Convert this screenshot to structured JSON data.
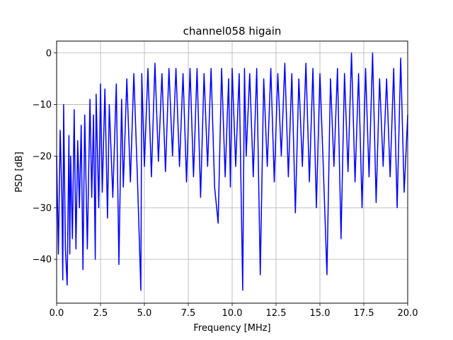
{
  "chart_data": {
    "type": "line",
    "title": "channel058 higain",
    "xlabel": "Frequency [MHz]",
    "ylabel": "PSD [dB]",
    "xlim": [
      0,
      20
    ],
    "ylim": [
      -48.5,
      2.3
    ],
    "grid": true,
    "xticks": [
      "0.0",
      "2.5",
      "5.0",
      "7.5",
      "10.0",
      "12.5",
      "15.0",
      "17.5",
      "20.0"
    ],
    "xtick_values": [
      0,
      2.5,
      5,
      7.5,
      10,
      12.5,
      15,
      17.5,
      20
    ],
    "yticks": [
      "0",
      "−10",
      "−20",
      "−30",
      "−40"
    ],
    "ytick_values": [
      0,
      -10,
      -20,
      -30,
      -40
    ],
    "series_color": "#0000ff",
    "series": [
      {
        "x": [
          0,
          0.1,
          0.2,
          0.3,
          0.35,
          0.4,
          0.5,
          0.6,
          0.7,
          0.75,
          0.8,
          0.9,
          1.0,
          1.1,
          1.2,
          1.3,
          1.4,
          1.5,
          1.6,
          1.75,
          1.9,
          2.0,
          2.1,
          2.2,
          2.25,
          2.4,
          2.5,
          2.6,
          2.75,
          2.9,
          3.0,
          3.2,
          3.4,
          3.55,
          3.7,
          3.8,
          4.0,
          4.2,
          4.4,
          4.6,
          4.8,
          4.85,
          5.0,
          5.2,
          5.4,
          5.6,
          5.8,
          6.0,
          6.2,
          6.4,
          6.6,
          6.8,
          7.0,
          7.2,
          7.4,
          7.6,
          7.8,
          8.0,
          8.2,
          8.4,
          8.6,
          8.8,
          9.0,
          9.2,
          9.4,
          9.6,
          9.8,
          9.9,
          10.0,
          10.2,
          10.4,
          10.6,
          10.7,
          10.8,
          11.0,
          11.2,
          11.4,
          11.6,
          11.8,
          12.0,
          12.2,
          12.4,
          12.6,
          12.8,
          13.0,
          13.2,
          13.4,
          13.6,
          13.8,
          14.0,
          14.2,
          14.4,
          14.6,
          14.8,
          15.0,
          15.2,
          15.4,
          15.6,
          15.8,
          16.0,
          16.2,
          16.4,
          16.6,
          16.8,
          17.0,
          17.2,
          17.4,
          17.6,
          17.8,
          18.0,
          18.2,
          18.4,
          18.6,
          18.8,
          19.0,
          19.2,
          19.4,
          19.6,
          19.8,
          20.0
        ],
        "y": [
          -20,
          -39,
          -15,
          -28,
          -44,
          -10,
          -38,
          -45,
          -16,
          -39,
          -20,
          -36,
          -11,
          -38,
          -17,
          -30,
          -14,
          -42,
          -12,
          -38,
          -9,
          -28,
          -12,
          -40,
          -8,
          -30,
          -6,
          -27,
          -7,
          -32,
          -10,
          -28,
          -6,
          -41,
          -9,
          -26,
          -5,
          -25,
          -4,
          -24,
          -46,
          -4,
          -22,
          -3,
          -24,
          -2,
          -21,
          -4,
          -23,
          -3,
          -20,
          -3,
          -22,
          -4,
          -25,
          -3,
          -24,
          -3,
          -28,
          -4,
          -22,
          -3,
          -26,
          -33,
          -3,
          -24,
          -5,
          -26,
          -3,
          -22,
          -4,
          -46,
          -3,
          -20,
          -4,
          -24,
          -3,
          -43,
          -5,
          -22,
          -3,
          -25,
          -4,
          -20,
          -2,
          -24,
          -4,
          -31,
          -5,
          -22,
          -2,
          -25,
          -3,
          -30,
          -4,
          -23,
          -43,
          -5,
          -22,
          -3,
          -36,
          -4,
          -23,
          0,
          -25,
          -4,
          -30,
          -3,
          -24,
          0,
          -29,
          -5,
          -22,
          -5,
          -24,
          -3,
          -30,
          -1,
          -27,
          -12
        ]
      }
    ]
  }
}
